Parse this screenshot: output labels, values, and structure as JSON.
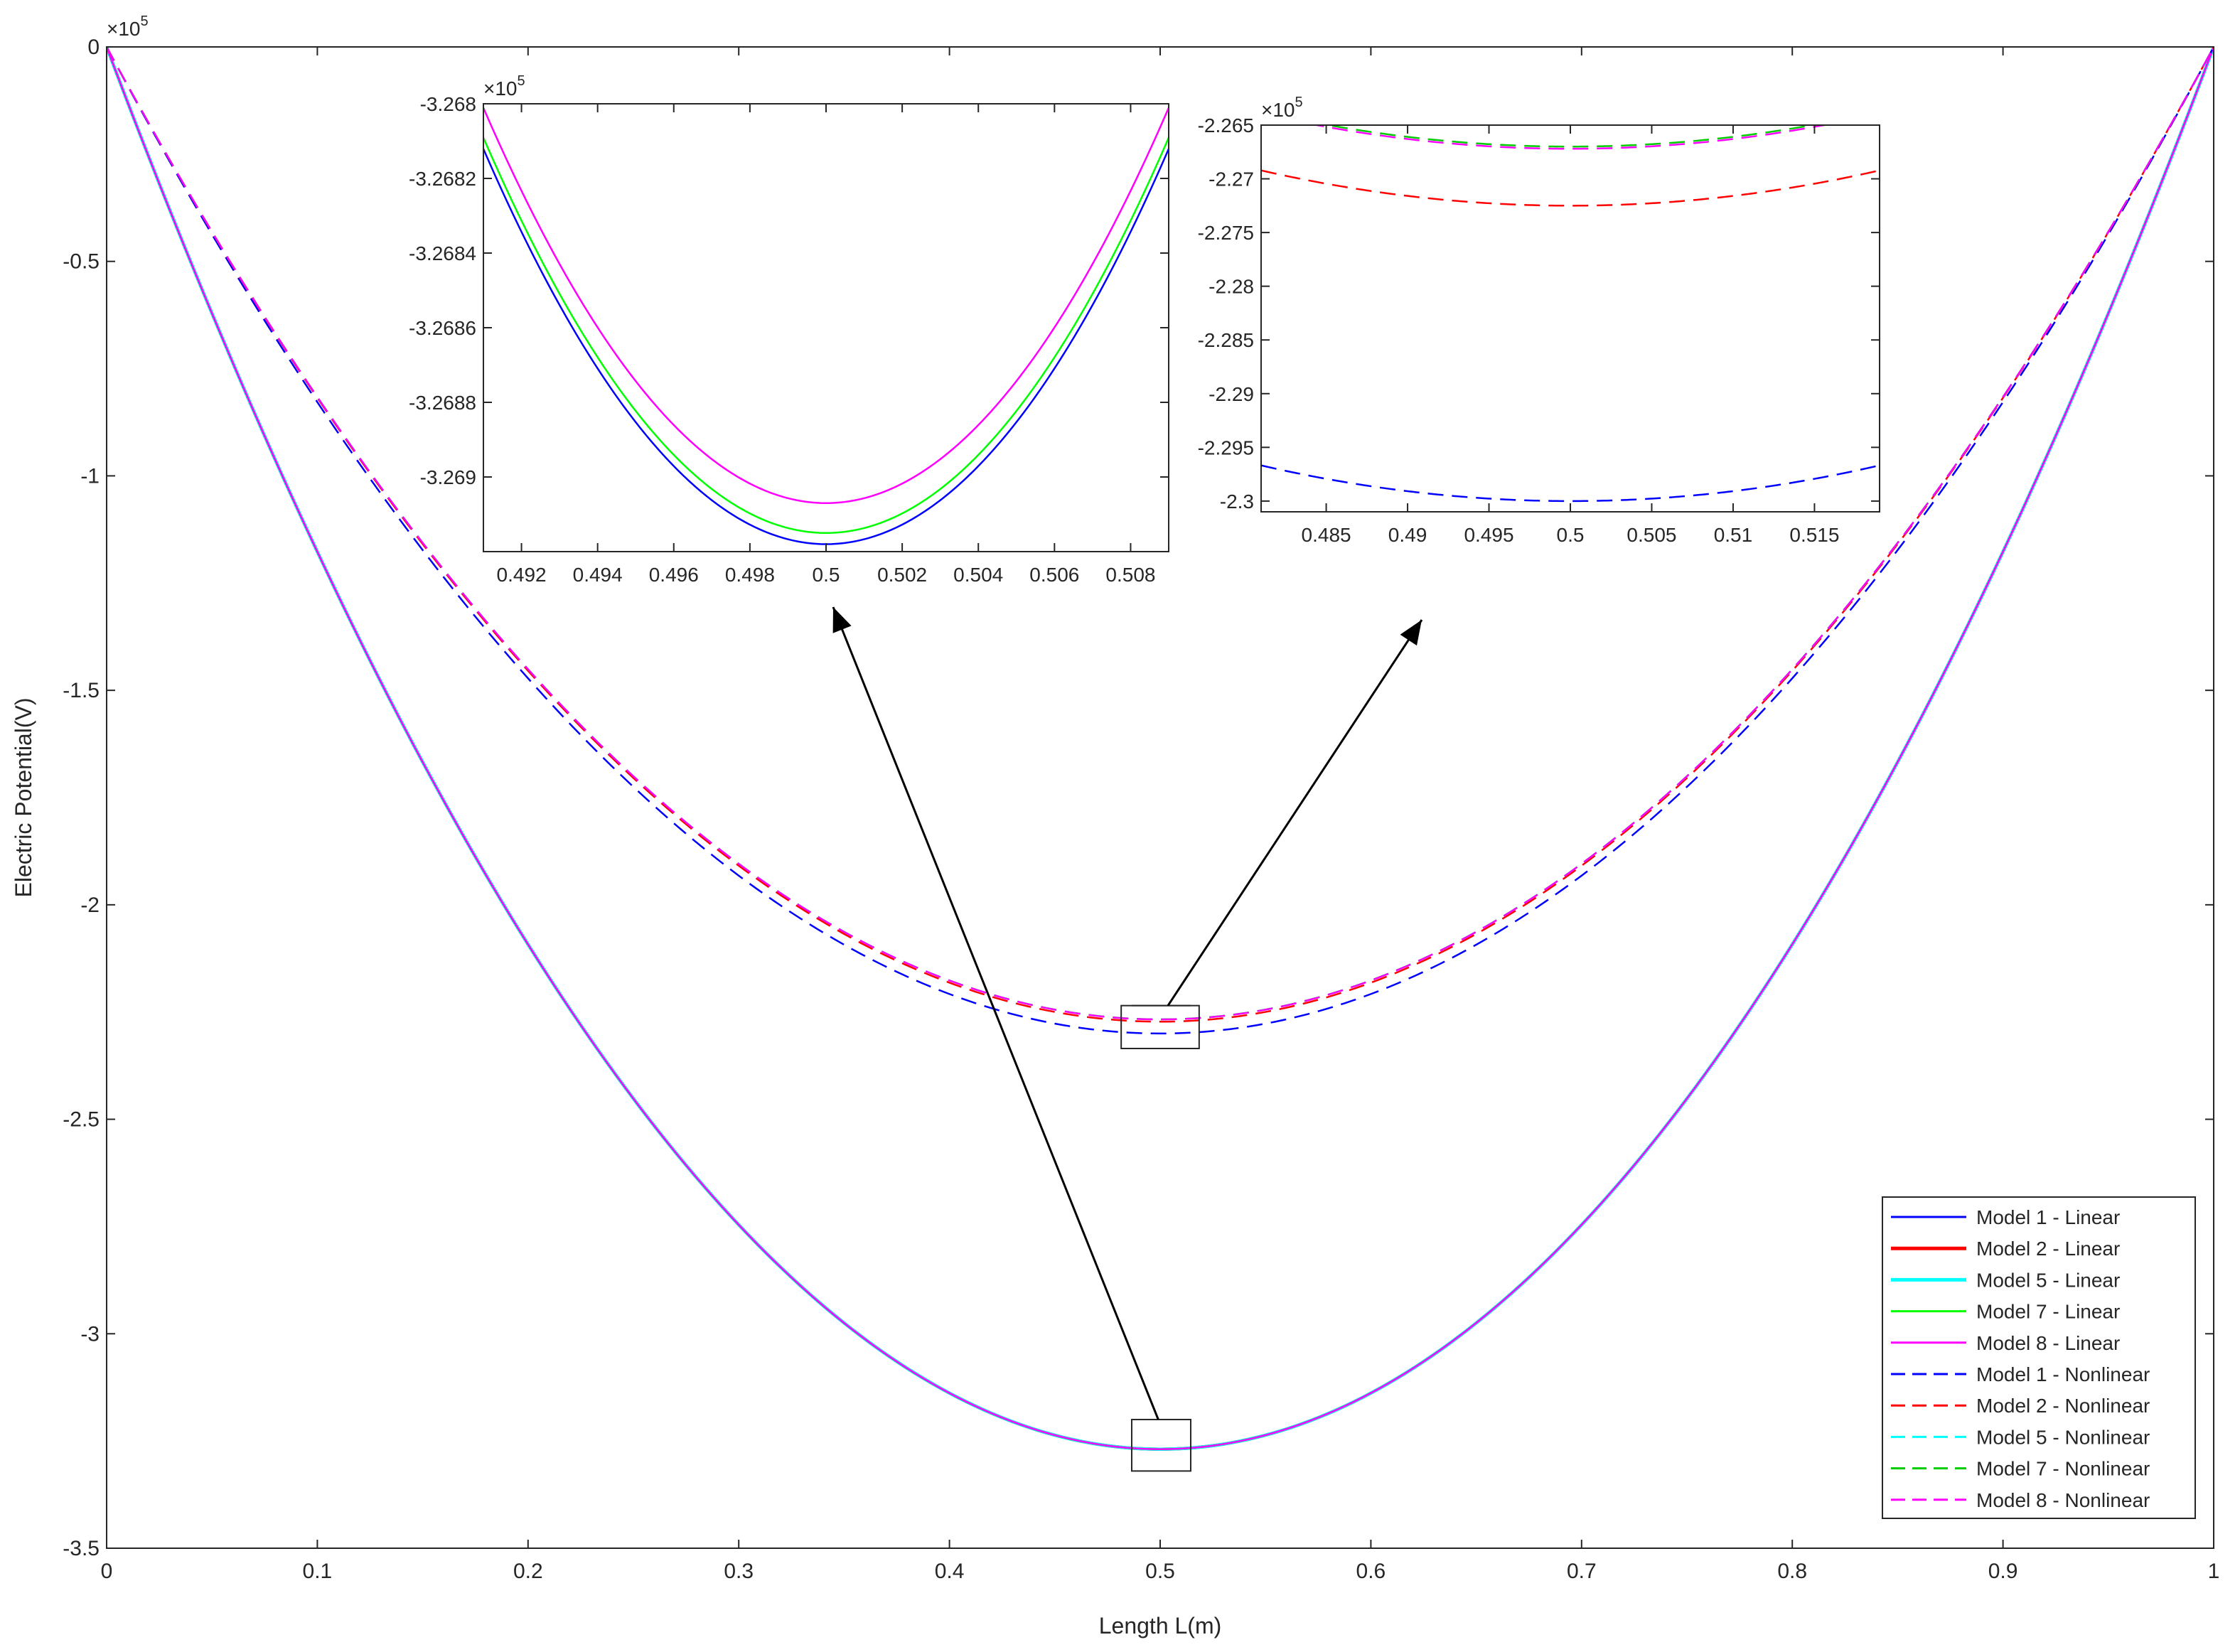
{
  "chart_data": [
    {
      "type": "line",
      "id": "main",
      "title": "",
      "xlabel": "Length L(m)",
      "ylabel": "Electric Potential(V)",
      "xlim": [
        0,
        1
      ],
      "ylim": [
        -3.5,
        0
      ],
      "y_multiplier": "×10",
      "y_multiplier_exp": "5",
      "x_ticks": [
        {
          "v": 0,
          "label": "0"
        },
        {
          "v": 0.1,
          "label": "0.1"
        },
        {
          "v": 0.2,
          "label": "0.2"
        },
        {
          "v": 0.3,
          "label": "0.3"
        },
        {
          "v": 0.4,
          "label": "0.4"
        },
        {
          "v": 0.5,
          "label": "0.5"
        },
        {
          "v": 0.6,
          "label": "0.6"
        },
        {
          "v": 0.7,
          "label": "0.7"
        },
        {
          "v": 0.8,
          "label": "0.8"
        },
        {
          "v": 0.9,
          "label": "0.9"
        },
        {
          "v": 1,
          "label": "1"
        }
      ],
      "y_ticks": [
        {
          "v": 0,
          "label": "0"
        },
        {
          "v": -0.5,
          "label": "-0.5"
        },
        {
          "v": -1,
          "label": "-1"
        },
        {
          "v": -1.5,
          "label": "-1.5"
        },
        {
          "v": -2,
          "label": "-2"
        },
        {
          "v": -2.5,
          "label": "-2.5"
        },
        {
          "v": -3,
          "label": "-3"
        },
        {
          "v": -3.5,
          "label": "-3.5"
        }
      ],
      "grid": false,
      "legend_position": "bottom-right",
      "series": [
        {
          "name": "Model 1 - Linear",
          "color": "#0000ff",
          "style": "solid",
          "min": -3.26918,
          "width": 2
        },
        {
          "name": "Model 2 - Linear",
          "color": "#ff0000",
          "style": "solid",
          "min": -3.26915,
          "width": 4
        },
        {
          "name": "Model 5 - Linear",
          "color": "#00ffff",
          "style": "solid",
          "min": -3.26915,
          "width": 4
        },
        {
          "name": "Model 7 - Linear",
          "color": "#00ff00",
          "style": "solid",
          "min": -3.26915,
          "width": 2
        },
        {
          "name": "Model 8 - Linear",
          "color": "#ff00ff",
          "style": "solid",
          "min": -3.26907,
          "width": 2
        },
        {
          "name": "Model 1 - Nonlinear",
          "color": "#0000ff",
          "style": "dashed",
          "min": -2.3,
          "width": 2
        },
        {
          "name": "Model 2 - Nonlinear",
          "color": "#ff0000",
          "style": "dashed",
          "min": -2.2725,
          "width": 2
        },
        {
          "name": "Model 5 - Nonlinear",
          "color": "#00ffff",
          "style": "dashed",
          "min": -2.267,
          "width": 2
        },
        {
          "name": "Model 7 - Nonlinear",
          "color": "#00cc00",
          "style": "dashed",
          "min": -2.267,
          "width": 2
        },
        {
          "name": "Model 8 - Nonlinear",
          "color": "#ff00ff",
          "style": "dashed",
          "min": -2.2672,
          "width": 2
        }
      ]
    },
    {
      "type": "line",
      "id": "inset-linear",
      "title": "",
      "xlabel": "",
      "ylabel": "",
      "xlim": [
        0.491,
        0.509
      ],
      "ylim": [
        -3.2692,
        -3.268
      ],
      "y_multiplier": "×10",
      "y_multiplier_exp": "5",
      "x_ticks": [
        {
          "v": 0.492,
          "label": "0.492"
        },
        {
          "v": 0.494,
          "label": "0.494"
        },
        {
          "v": 0.496,
          "label": "0.496"
        },
        {
          "v": 0.498,
          "label": "0.498"
        },
        {
          "v": 0.5,
          "label": "0.5"
        },
        {
          "v": 0.502,
          "label": "0.502"
        },
        {
          "v": 0.504,
          "label": "0.504"
        },
        {
          "v": 0.506,
          "label": "0.506"
        },
        {
          "v": 0.508,
          "label": "0.508"
        }
      ],
      "y_ticks": [
        {
          "v": -3.268,
          "label": "-3.268"
        },
        {
          "v": -3.2682,
          "label": "-3.2682"
        },
        {
          "v": -3.2684,
          "label": "-3.2684"
        },
        {
          "v": -3.2686,
          "label": "-3.2686"
        },
        {
          "v": -3.2688,
          "label": "-3.2688"
        },
        {
          "v": -3.269,
          "label": "-3.269"
        }
      ],
      "series_shown": [
        0,
        3,
        4
      ]
    },
    {
      "type": "line",
      "id": "inset-nonlinear",
      "title": "",
      "xlabel": "",
      "ylabel": "",
      "xlim": [
        0.481,
        0.519
      ],
      "ylim": [
        -2.301,
        -2.265
      ],
      "y_multiplier": "×10",
      "y_multiplier_exp": "5",
      "x_ticks": [
        {
          "v": 0.485,
          "label": "0.485"
        },
        {
          "v": 0.49,
          "label": "0.49"
        },
        {
          "v": 0.495,
          "label": "0.495"
        },
        {
          "v": 0.5,
          "label": "0.5"
        },
        {
          "v": 0.505,
          "label": "0.505"
        },
        {
          "v": 0.51,
          "label": "0.51"
        },
        {
          "v": 0.515,
          "label": "0.515"
        }
      ],
      "y_ticks": [
        {
          "v": -2.265,
          "label": "-2.265"
        },
        {
          "v": -2.27,
          "label": "-2.27"
        },
        {
          "v": -2.275,
          "label": "-2.275"
        },
        {
          "v": -2.28,
          "label": "-2.28"
        },
        {
          "v": -2.285,
          "label": "-2.285"
        },
        {
          "v": -2.29,
          "label": "-2.29"
        },
        {
          "v": -2.295,
          "label": "-2.295"
        },
        {
          "v": -2.3,
          "label": "-2.3"
        }
      ],
      "series_shown": [
        5,
        6,
        8,
        9
      ]
    }
  ]
}
